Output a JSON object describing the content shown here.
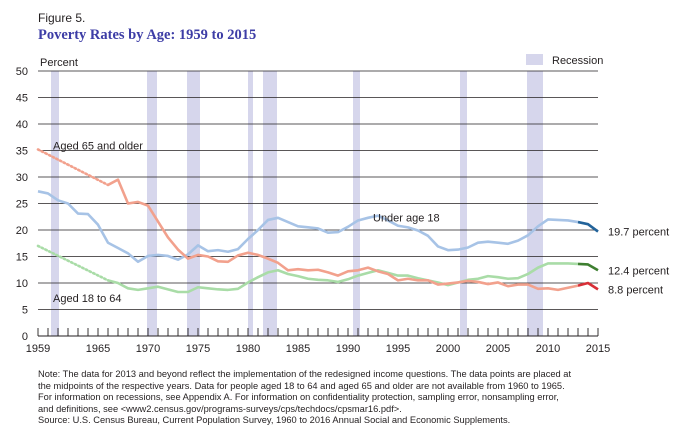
{
  "figure": {
    "label": "Figure 5.",
    "title": "Poverty Rates by Age: 1959 to 2015"
  },
  "chart_data": {
    "type": "line",
    "title": "Poverty Rates by Age: 1959 to 2015",
    "ylabel": "Percent",
    "xlabel": "",
    "xlim": [
      1959,
      2015
    ],
    "ylim": [
      0,
      50
    ],
    "y_ticks": [
      0,
      5,
      10,
      15,
      20,
      25,
      30,
      35,
      40,
      45,
      50
    ],
    "x_tick_labels": [
      1959,
      1965,
      1970,
      1975,
      1980,
      1985,
      1990,
      1995,
      2000,
      2005,
      2010,
      2015
    ],
    "grid": "horizontal",
    "legend": {
      "label": "Recession",
      "color": "#d6d6ec",
      "placement": "top-right"
    },
    "recessions": [
      [
        1960.3,
        1961.1
      ],
      [
        1969.9,
        1970.9
      ],
      [
        1973.9,
        1975.2
      ],
      [
        1980.0,
        1980.5
      ],
      [
        1981.5,
        1982.9
      ],
      [
        1990.5,
        1991.2
      ],
      [
        2001.2,
        2001.9
      ],
      [
        2007.9,
        2009.5
      ]
    ],
    "series": [
      {
        "name": "Under age 18",
        "color": "#a7c3e6",
        "color_2013_on": "#22639a",
        "end_label": "19.7 percent",
        "x": [
          1959,
          1960,
          1961,
          1962,
          1963,
          1964,
          1965,
          1966,
          1967,
          1968,
          1969,
          1970,
          1971,
          1972,
          1973,
          1974,
          1975,
          1976,
          1977,
          1978,
          1979,
          1980,
          1981,
          1982,
          1983,
          1984,
          1985,
          1986,
          1987,
          1988,
          1989,
          1990,
          1991,
          1992,
          1993,
          1994,
          1995,
          1996,
          1997,
          1998,
          1999,
          2000,
          2001,
          2002,
          2003,
          2004,
          2005,
          2006,
          2007,
          2008,
          2009,
          2010,
          2011,
          2012,
          2013,
          2014,
          2015
        ],
        "values": [
          27.3,
          26.9,
          25.6,
          25.0,
          23.1,
          23.0,
          21.0,
          17.6,
          16.6,
          15.6,
          14.0,
          15.1,
          15.3,
          15.1,
          14.4,
          15.4,
          17.1,
          16.0,
          16.2,
          15.9,
          16.4,
          18.3,
          20.0,
          21.9,
          22.3,
          21.5,
          20.7,
          20.5,
          20.3,
          19.5,
          19.6,
          20.6,
          21.8,
          22.3,
          22.7,
          21.8,
          20.8,
          20.5,
          19.9,
          18.9,
          16.9,
          16.2,
          16.3,
          16.7,
          17.6,
          17.8,
          17.6,
          17.4,
          18.0,
          19.0,
          20.7,
          22.0,
          21.9,
          21.8,
          21.5,
          21.1,
          19.7
        ]
      },
      {
        "name": "Aged 18 to 64",
        "color": "#a9dca7",
        "color_2013_on": "#3e7f30",
        "end_label": "12.4 percent",
        "x": [
          1966,
          1967,
          1968,
          1969,
          1970,
          1971,
          1972,
          1973,
          1974,
          1975,
          1976,
          1977,
          1978,
          1979,
          1980,
          1981,
          1982,
          1983,
          1984,
          1985,
          1986,
          1987,
          1988,
          1989,
          1990,
          1991,
          1992,
          1993,
          1994,
          1995,
          1996,
          1997,
          1998,
          1999,
          2000,
          2001,
          2002,
          2003,
          2004,
          2005,
          2006,
          2007,
          2008,
          2009,
          2010,
          2011,
          2012,
          2013,
          2014,
          2015
        ],
        "values": [
          10.5,
          10.0,
          9.0,
          8.7,
          9.0,
          9.3,
          8.8,
          8.3,
          8.3,
          9.2,
          9.0,
          8.8,
          8.7,
          8.9,
          10.1,
          11.1,
          12.0,
          12.4,
          11.7,
          11.3,
          10.8,
          10.6,
          10.5,
          10.2,
          10.7,
          11.4,
          11.9,
          12.4,
          11.9,
          11.4,
          11.4,
          10.9,
          10.5,
          10.1,
          9.6,
          10.1,
          10.6,
          10.8,
          11.3,
          11.1,
          10.8,
          10.9,
          11.7,
          12.9,
          13.7,
          13.7,
          13.7,
          13.6,
          13.5,
          12.4
        ]
      },
      {
        "name": "Aged 65 and older",
        "color": "#f2a18d",
        "color_2013_on": "#d82f37",
        "end_label": "8.8 percent",
        "x": [
          1966,
          1967,
          1968,
          1969,
          1970,
          1971,
          1972,
          1973,
          1974,
          1975,
          1976,
          1977,
          1978,
          1979,
          1980,
          1981,
          1982,
          1983,
          1984,
          1985,
          1986,
          1987,
          1988,
          1989,
          1990,
          1991,
          1992,
          1993,
          1994,
          1995,
          1996,
          1997,
          1998,
          1999,
          2000,
          2001,
          2002,
          2003,
          2004,
          2005,
          2006,
          2007,
          2008,
          2009,
          2010,
          2011,
          2012,
          2013,
          2014,
          2015
        ],
        "values": [
          28.5,
          29.5,
          25.0,
          25.3,
          24.6,
          21.6,
          18.6,
          16.3,
          14.6,
          15.3,
          15.0,
          14.1,
          14.0,
          15.2,
          15.7,
          15.3,
          14.6,
          13.8,
          12.4,
          12.6,
          12.4,
          12.5,
          12.0,
          11.4,
          12.2,
          12.4,
          12.9,
          12.2,
          11.7,
          10.5,
          10.8,
          10.5,
          10.5,
          9.7,
          9.9,
          10.1,
          10.4,
          10.2,
          9.8,
          10.1,
          9.4,
          9.7,
          9.7,
          8.9,
          9.0,
          8.7,
          9.1,
          9.5,
          10.0,
          8.8
        ]
      }
    ],
    "estimated_segments": [
      {
        "name": "Aged 65 and older",
        "x": [
          1959,
          1966
        ],
        "values": [
          35.2,
          28.5
        ]
      },
      {
        "name": "Aged 18 to 64",
        "x": [
          1959,
          1966
        ],
        "values": [
          17.0,
          10.5
        ]
      }
    ],
    "annotations": [
      {
        "text": "Aged 65 and older",
        "x": 1960.5,
        "y": 35.9
      },
      {
        "text": "Under age 18",
        "x": 1992.5,
        "y": 22.4
      },
      {
        "text": "Aged 18 to 64",
        "x": 1960.5,
        "y": 7.2
      }
    ]
  },
  "notes": {
    "line1": "Note: The data for 2013 and beyond reflect the implementation of the redesigned income questions. The data points are placed at",
    "line2": "the midpoints of the respective years. Data for people aged 18 to 64 and aged 65 and older are not available from 1960 to 1965.",
    "line3": "For information on recessions, see Appendix A. For information on confidentiality protection, sampling error, nonsampling error,",
    "line4": "and definitions, see <www2.census.gov/programs-surveys/cps/techdocs/cpsmar16.pdf>.",
    "source": "Source: U.S. Census Bureau, Current Population Survey, 1960 to 2016 Annual Social and Economic Supplements."
  }
}
